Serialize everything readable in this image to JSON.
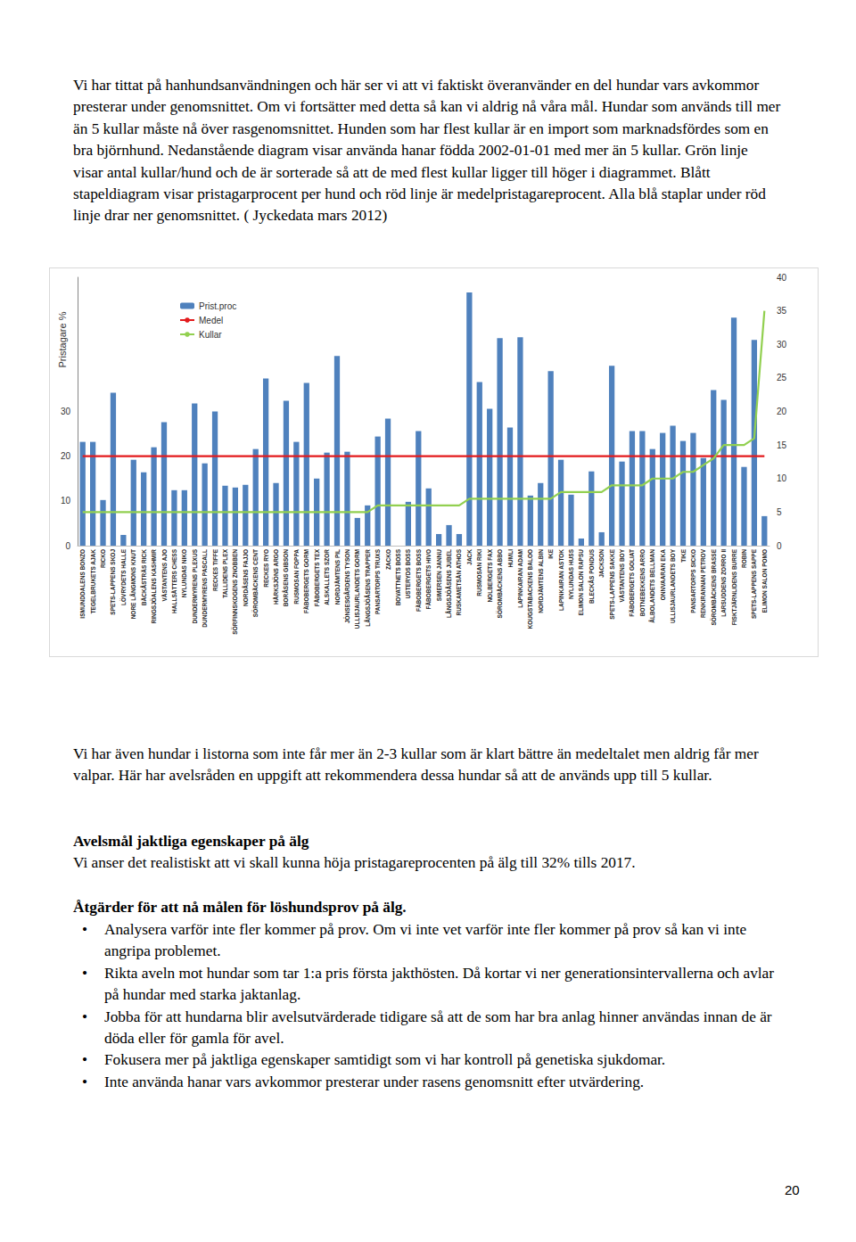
{
  "intro": "Vi har tittat på hanhundsanvändningen och här ser vi att vi faktiskt överanvänder en del hundar vars avkommor presterar under genomsnittet. Om vi fortsätter med detta så kan vi aldrig nå våra mål. Hundar som används till mer än 5 kullar måste nå över rasgenomsnittet. Hunden som har flest kullar är en import som marknadsfördes som en bra björnhund. Nedanstående diagram visar använda hanar födda 2002-01-01 med mer än 5 kullar. Grön linje visar antal kullar/hund och de är sorterade så att de med flest kullar ligger till höger i diagrammet. Blått stapeldiagram visar pristagarprocent per hund och röd linje är medelpristagareprocent. Alla blå staplar under röd linje drar ner genomsnittet. ( Jyckedata mars 2012)",
  "chart_data": {
    "type": "bar",
    "ylabel": "Pristagare %",
    "categories": [
      "ISMUNDDALENS BONZO",
      "TEGELBRUKETS AJAK",
      "RICKO",
      "SPETS-LAPPENS SKOJ",
      "LÖVRYDETS HALLE",
      "NORE LÅNGMONS KNUT",
      "BÄCKÅSTRÄS RICK",
      "RINGSJÖALENS KASHMIR",
      "VÄSTANTENS AJO",
      "HALLSÄTTERS CHESS",
      "NYLUNDAS NIKO",
      "DUNDERMYRENS PLEXUS",
      "DUNDERMYRENS PASCALL",
      "RECKES TIFFE",
      "TALLIDENS PLEX",
      "SÖRFINNSKOGENS ZNOBBEN",
      "NORDÅSENS FAJJO",
      "SÖROMBÄCKENS CENT",
      "RECKES RYO",
      "HÄRKSJÖNS ARGO",
      "BORÅSENS GIBSON",
      "RUSMOSAN FOPPA",
      "FÄBOBERGETS GORM",
      "FÄBOBERGETS TEX",
      "ALSKALLETS SZOR",
      "NORDJÄMTENS PIL",
      "JÖNSESGÅRDENS TYSON",
      "ULLISJAURLANDETS GORM",
      "LÅNGSJÖÅSENS TRAPPER",
      "PANSARTORPS TRUXS",
      "ZACKO",
      "BOVATTNETS BOSS",
      "USTERYDS BOSS",
      "FÄBOBERGETS BOSS",
      "FÄBOBERGETS HIVO",
      "SIMERSEN JANNU",
      "LÅNGSJÖÅSENS JUBEL",
      "RUSKAMETSÄN ATHOS",
      "JACK",
      "RUSMOSAN RIKI",
      "NOLBERGETS FAX",
      "SÖROMBÄCKENS ABBO",
      "HUMLI",
      "LAPINKAIRAN ADAM",
      "KOUGSTABACKENS BALOO",
      "NORDJÄMTENS ALBIN",
      "IKE",
      "LAPINKAIRAN ASTOK",
      "NYLUNDAS HUSS",
      "ELIMON SALON RAPSU",
      "BLECKÅS PONDUS",
      "JACKSON",
      "SPETS-LAPPENS SAKKE",
      "VÄSTANTENS BOY",
      "FÄBOBERGETS GOLIAT",
      "BOTNEBEKKENS ARRO",
      "ÅLBOLANDETS BELLMAN",
      "ONNVAARAN EKA",
      "ULLISJAURLANDETS BOY",
      "TIKE",
      "PANSARTORPS SICKO",
      "RENKIRANNAN PETROV",
      "SÖROMBÄCKENS BRASSE",
      "LARSUDDENS ZORRO II",
      "FISKTJÄRNLIDENS BURRE",
      "ROBIN",
      "SPETS-LAPPENS SAPPE",
      "ELIMON SALON POMO"
    ],
    "series": [
      {
        "name": "Prist.proc",
        "type": "bar",
        "color": "#4f81bd",
        "values": [
          23.2,
          23.2,
          10.2,
          34.2,
          2.4,
          19.2,
          16.4,
          22,
          27.6,
          12.4,
          12.4,
          31.8,
          18.4,
          30,
          13.4,
          13,
          13.6,
          21.6,
          37.4,
          14,
          32.4,
          23.2,
          36.4,
          15,
          20.8,
          42.4,
          21,
          6.2,
          9,
          24.4,
          28.4,
          0,
          9.8,
          25.6,
          12.8,
          2.6,
          4.6,
          2.6,
          56.6,
          36.6,
          30.6,
          46.4,
          26.4,
          46.6,
          11.2,
          14,
          39,
          19.2,
          11.4,
          1.6,
          16.6,
          3,
          40.2,
          18.8,
          25.6,
          25.6,
          21.6,
          25.2,
          26.8,
          23.4,
          25.2,
          19.6,
          34.8,
          32.6,
          51,
          17.6,
          46,
          6.6
        ]
      },
      {
        "name": "Medel",
        "type": "line",
        "color": "#e31a1c",
        "line_style": "solid",
        "values": [
          20,
          20,
          20,
          20,
          20,
          20,
          20,
          20,
          20,
          20,
          20,
          20,
          20,
          20,
          20,
          20,
          20,
          20,
          20,
          20,
          20,
          20,
          20,
          20,
          20,
          20,
          20,
          20,
          20,
          20,
          20,
          20,
          20,
          20,
          20,
          20,
          20,
          20,
          20,
          20,
          20,
          20,
          20,
          20,
          20,
          20,
          20,
          20,
          20,
          20,
          20,
          20,
          20,
          20,
          20,
          20,
          20,
          20,
          20,
          20,
          20,
          20,
          20,
          20,
          20,
          20,
          20,
          20
        ]
      },
      {
        "name": "Kullar",
        "type": "line",
        "color": "#92d050",
        "line_style": "solid",
        "axis": "y2",
        "values": [
          5,
          5,
          5,
          5,
          5,
          5,
          5,
          5,
          5,
          5,
          5,
          5,
          5,
          5,
          5,
          5,
          5,
          5,
          5,
          5,
          5,
          5,
          5,
          5,
          5,
          5,
          5,
          5,
          5,
          6,
          6,
          6,
          6,
          6,
          6,
          6,
          6,
          6,
          7,
          7,
          7,
          7,
          7,
          7,
          7,
          7,
          7,
          8,
          8,
          8,
          8,
          8,
          9,
          9,
          9,
          9,
          10,
          10,
          10,
          11,
          11,
          12,
          13,
          15,
          15,
          15,
          16,
          35
        ]
      }
    ],
    "ylim": [
      0,
      60
    ],
    "yticks": [
      0,
      10,
      20,
      30
    ],
    "y2lim": [
      0,
      40
    ],
    "y2ticks": [
      0,
      5,
      10,
      15,
      20,
      25,
      30,
      35,
      40
    ],
    "legend": "top-left",
    "grid": false
  },
  "paragraph": "Vi har även hundar i listorna som inte får mer än 2-3 kullar som är klart bättre än medeltalet men aldrig får mer valpar. Här har avelsråden en uppgift att rekommendera dessa hundar så att de används upp till 5 kullar.",
  "sections": [
    {
      "heading": "Avelsmål jaktliga egenskaper på älg",
      "text": "Vi anser det realistiskt att vi skall kunna höja pristagareprocenten på älg till 32% tills 2017."
    },
    {
      "heading": "Åtgärder för att nå målen för löshundsprov på älg.",
      "bullets": [
        "Analysera varför inte fler kommer på prov. Om vi inte vet varför inte fler kommer på prov så kan vi inte angripa problemet.",
        "Rikta aveln mot hundar som tar 1:a pris första jakthösten. Då kortar vi ner generationsintervallerna och avlar på hundar med starka jaktanlag.",
        "Jobba för att hundarna blir avelsutvärderade tidigare så att de som har bra anlag hinner användas innan de är döda eller för gamla för avel.",
        "Fokusera mer på jaktliga egenskaper samtidigt som vi har kontroll på genetiska sjukdomar.",
        "Inte använda hanar vars avkommor presterar under rasens genomsnitt efter utvärdering."
      ]
    }
  ],
  "page_number": 20
}
